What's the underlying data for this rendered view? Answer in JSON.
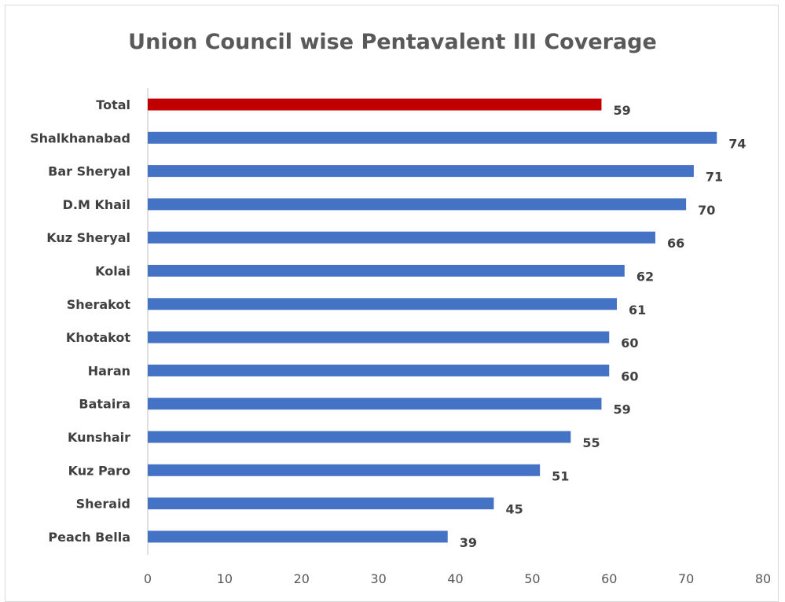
{
  "chart_data": {
    "type": "bar",
    "orientation": "horizontal",
    "title": "Union Council wise Pentavalent III Coverage",
    "categories": [
      "Total",
      "Shalkhanabad",
      "Bar Sheryal",
      "D.M Khail",
      "Kuz Sheryal",
      "Kolai",
      "Sherakot",
      "Khotakot",
      "Haran",
      "Bataira",
      "Kunshair",
      "Kuz Paro",
      "Sheraid",
      "Peach Bella"
    ],
    "values": [
      59,
      74,
      71,
      70,
      66,
      62,
      61,
      60,
      60,
      59,
      55,
      51,
      45,
      39
    ],
    "highlight_category": "Total",
    "colors": {
      "highlight": "#c00000",
      "default": "#4472c4",
      "axis": "#bfbfbf"
    },
    "xlim": [
      0,
      80
    ],
    "xticks": [
      0,
      10,
      20,
      30,
      40,
      50,
      60,
      70,
      80
    ],
    "xlabel": "",
    "ylabel": "",
    "grid": false,
    "data_labels": true
  }
}
